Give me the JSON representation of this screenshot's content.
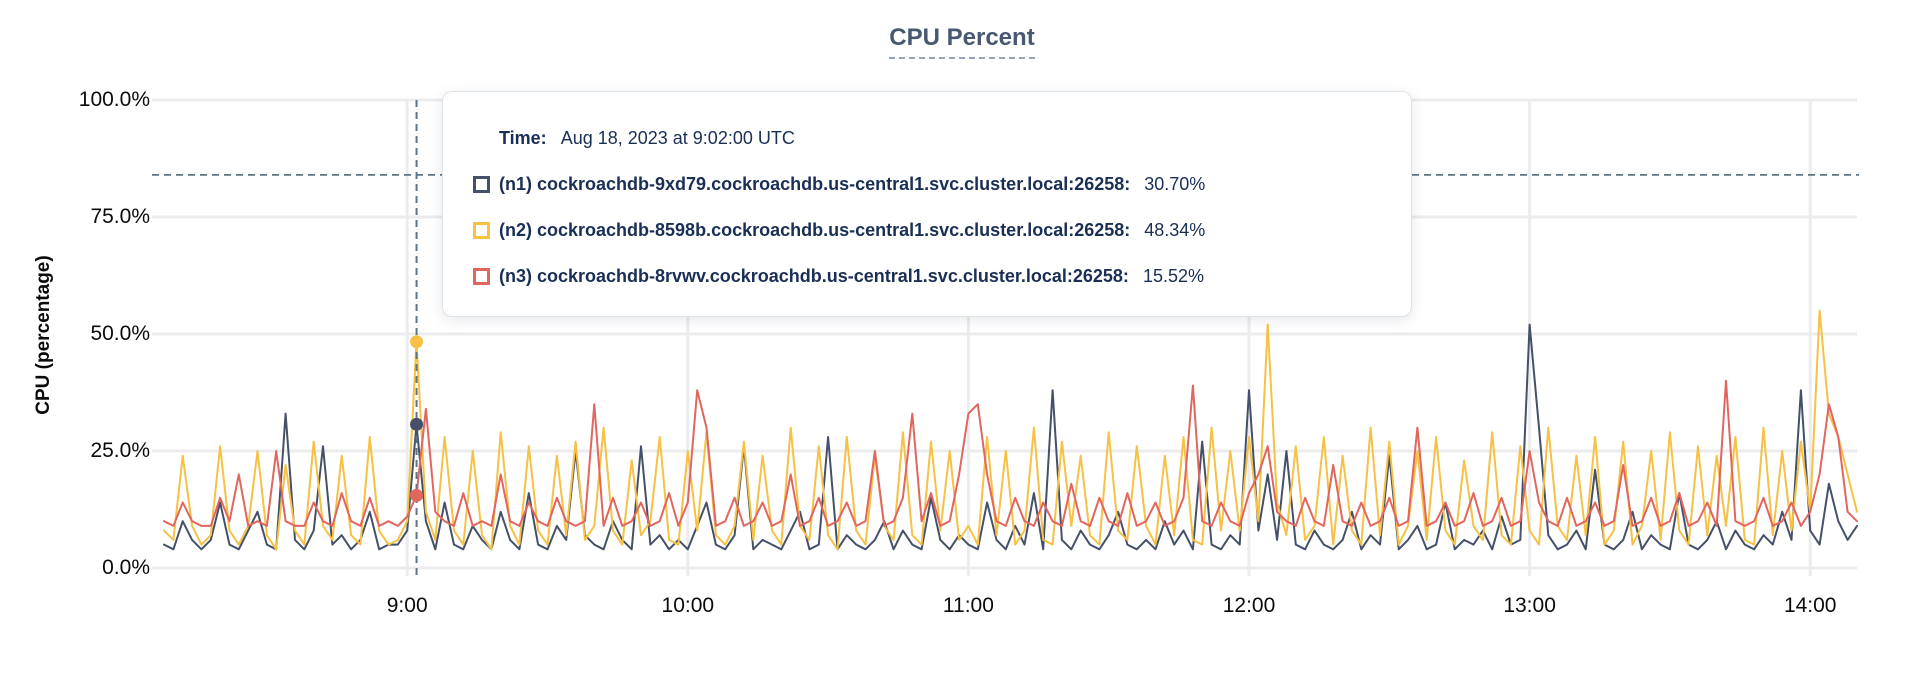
{
  "header": {
    "title": "CPU Percent"
  },
  "tooltip": {
    "time_label": "Time:",
    "time_value": "Aug 18, 2023 at 9:02:00 UTC",
    "rows": [
      {
        "id": "n1",
        "label": "(n1) cockroachdb-9xd79.cockroachdb.us-central1.svc.cluster.local:26258:",
        "value": "30.70%",
        "color": "#455168"
      },
      {
        "id": "n2",
        "label": "(n2) cockroachdb-8598b.cockroachdb.us-central1.svc.cluster.local:26258:",
        "value": "48.34%",
        "color": "#F6C144"
      },
      {
        "id": "n3",
        "label": "(n3) cockroachdb-8rvwv.cockroachdb.us-central1.svc.cluster.local:26258:",
        "value": "15.52%",
        "color": "#E0665E"
      }
    ]
  },
  "chart_data": {
    "type": "line",
    "title": "CPU Percent",
    "ylabel": "CPU (percentage)",
    "ylim": [
      0,
      100
    ],
    "yticks": [
      {
        "value": 0,
        "label": "0.0%"
      },
      {
        "value": 25,
        "label": "25.0%"
      },
      {
        "value": 50,
        "label": "50.0%"
      },
      {
        "value": 75,
        "label": "75.0%"
      },
      {
        "value": 100,
        "label": "100.0%"
      }
    ],
    "x_unit": "time of day (UTC), minutes since midnight",
    "x_range_min": [
      488,
      850
    ],
    "x_start_min": 488,
    "x_step_min": 2,
    "xticks": [
      {
        "min": 540,
        "label": "9:00"
      },
      {
        "min": 600,
        "label": "10:00"
      },
      {
        "min": 660,
        "label": "11:00"
      },
      {
        "min": 720,
        "label": "12:00"
      },
      {
        "min": 780,
        "label": "13:00"
      },
      {
        "min": 840,
        "label": "14:00"
      }
    ],
    "grid": true,
    "legend_position": "tooltip-overlay",
    "threshold_line_pct": 84,
    "colors": {
      "grid": "#ececee",
      "dashed_guides": "#5e7485",
      "title": "#475872",
      "tooltip_text": "#1a2f55"
    },
    "cursor": {
      "time_min": 542,
      "time_label": "Aug 18, 2023 at 9:02:00 UTC",
      "marker_values": {
        "n1": 30.7,
        "n2": 48.34,
        "n3": 15.52
      }
    },
    "series": [
      {
        "id": "n1",
        "name": "(n1) cockroachdb-9xd79.cockroachdb.us-central1.svc.cluster.local:26258",
        "color": "#455168",
        "values": [
          5,
          4,
          10,
          6,
          4,
          6,
          14,
          5,
          4,
          8,
          12,
          5,
          4,
          33,
          6,
          4,
          8,
          26,
          5,
          7,
          4,
          6,
          12,
          4,
          5,
          5,
          8,
          30.7,
          10,
          4,
          14,
          5,
          4,
          9,
          6,
          4,
          12,
          6,
          4,
          16,
          5,
          4,
          9,
          6,
          25,
          7,
          5,
          4,
          10,
          6,
          4,
          26,
          5,
          7,
          4,
          6,
          4,
          9,
          14,
          5,
          4,
          7,
          26,
          4,
          6,
          5,
          4,
          8,
          12,
          4,
          5,
          28,
          4,
          7,
          5,
          4,
          6,
          10,
          4,
          8,
          5,
          4,
          15,
          6,
          4,
          7,
          5,
          4,
          14,
          6,
          4,
          9,
          5,
          16,
          4,
          38,
          6,
          4,
          8,
          5,
          4,
          7,
          12,
          5,
          4,
          6,
          4,
          10,
          5,
          8,
          4,
          27,
          5,
          4,
          7,
          5,
          38,
          8,
          20,
          6,
          25,
          5,
          4,
          8,
          5,
          4,
          6,
          12,
          4,
          7,
          5,
          24,
          4,
          6,
          9,
          4,
          5,
          14,
          4,
          6,
          5,
          8,
          4,
          11,
          5,
          6,
          52,
          30,
          7,
          4,
          5,
          8,
          4,
          21,
          5,
          4,
          6,
          12,
          4,
          7,
          5,
          4,
          16,
          5,
          4,
          6,
          10,
          4,
          8,
          5,
          4,
          7,
          5,
          12,
          6,
          38,
          8,
          5,
          18,
          10,
          6,
          9
        ]
      },
      {
        "id": "n2",
        "name": "(n2) cockroachdb-8598b.cockroachdb.us-central1.svc.cluster.local:26258",
        "color": "#F6C144",
        "values": [
          8,
          6,
          24,
          9,
          5,
          7,
          26,
          8,
          5,
          9,
          25,
          7,
          4,
          22,
          8,
          5,
          27,
          9,
          6,
          24,
          7,
          5,
          28,
          8,
          5,
          6,
          10,
          48.34,
          12,
          6,
          28,
          8,
          5,
          25,
          7,
          4,
          29,
          9,
          5,
          26,
          8,
          5,
          24,
          7,
          27,
          6,
          9,
          30,
          8,
          5,
          23,
          7,
          10,
          28,
          6,
          5,
          25,
          8,
          29,
          7,
          5,
          9,
          27,
          6,
          24,
          8,
          5,
          30,
          9,
          6,
          26,
          7,
          4,
          28,
          8,
          5,
          24,
          9,
          6,
          29,
          7,
          5,
          27,
          8,
          25,
          6,
          9,
          5,
          28,
          7,
          25,
          5,
          8,
          30,
          6,
          5,
          27,
          9,
          24,
          7,
          5,
          29,
          8,
          6,
          26,
          9,
          5,
          24,
          7,
          28,
          6,
          5,
          30,
          8,
          25,
          8,
          28,
          10,
          52,
          14,
          7,
          26,
          6,
          9,
          28,
          5,
          24,
          8,
          5,
          30,
          7,
          27,
          5,
          9,
          25,
          6,
          28,
          8,
          5,
          23,
          9,
          6,
          29,
          7,
          5,
          26,
          8,
          5,
          30,
          9,
          6,
          24,
          7,
          28,
          5,
          8,
          27,
          5,
          9,
          25,
          6,
          29,
          8,
          5,
          26,
          7,
          24,
          9,
          28,
          6,
          5,
          30,
          7,
          25,
          8,
          27,
          12,
          55,
          33,
          28,
          20,
          12
        ]
      },
      {
        "id": "n3",
        "name": "(n3) cockroachdb-8rvwv.cockroachdb.us-central1.svc.cluster.local:26258",
        "color": "#E0665E",
        "values": [
          10,
          9,
          14,
          10,
          9,
          9,
          15,
          10,
          20,
          9,
          10,
          9,
          25,
          10,
          9,
          9,
          14,
          10,
          9,
          16,
          10,
          9,
          15,
          9,
          10,
          9,
          11,
          15.52,
          34,
          12,
          10,
          9,
          16,
          9,
          10,
          9,
          20,
          10,
          9,
          14,
          10,
          9,
          15,
          10,
          9,
          10,
          35,
          9,
          15,
          9,
          10,
          14,
          9,
          10,
          16,
          9,
          14,
          38,
          30,
          9,
          10,
          15,
          9,
          10,
          14,
          9,
          10,
          20,
          9,
          10,
          15,
          9,
          10,
          14,
          9,
          10,
          25,
          9,
          10,
          15,
          33,
          10,
          16,
          9,
          10,
          20,
          33,
          35,
          20,
          10,
          9,
          15,
          10,
          9,
          14,
          10,
          9,
          18,
          10,
          9,
          15,
          10,
          9,
          16,
          9,
          10,
          14,
          9,
          10,
          15,
          39,
          10,
          9,
          14,
          10,
          9,
          16,
          20,
          26,
          12,
          10,
          9,
          15,
          10,
          9,
          22,
          10,
          9,
          14,
          9,
          10,
          15,
          9,
          10,
          30,
          9,
          10,
          14,
          9,
          10,
          16,
          9,
          10,
          15,
          9,
          10,
          25,
          14,
          10,
          9,
          15,
          9,
          10,
          14,
          9,
          10,
          22,
          9,
          10,
          15,
          9,
          10,
          16,
          9,
          10,
          14,
          9,
          40,
          10,
          9,
          10,
          15,
          9,
          10,
          14,
          9,
          12,
          20,
          35,
          28,
          12,
          10
        ]
      }
    ]
  }
}
